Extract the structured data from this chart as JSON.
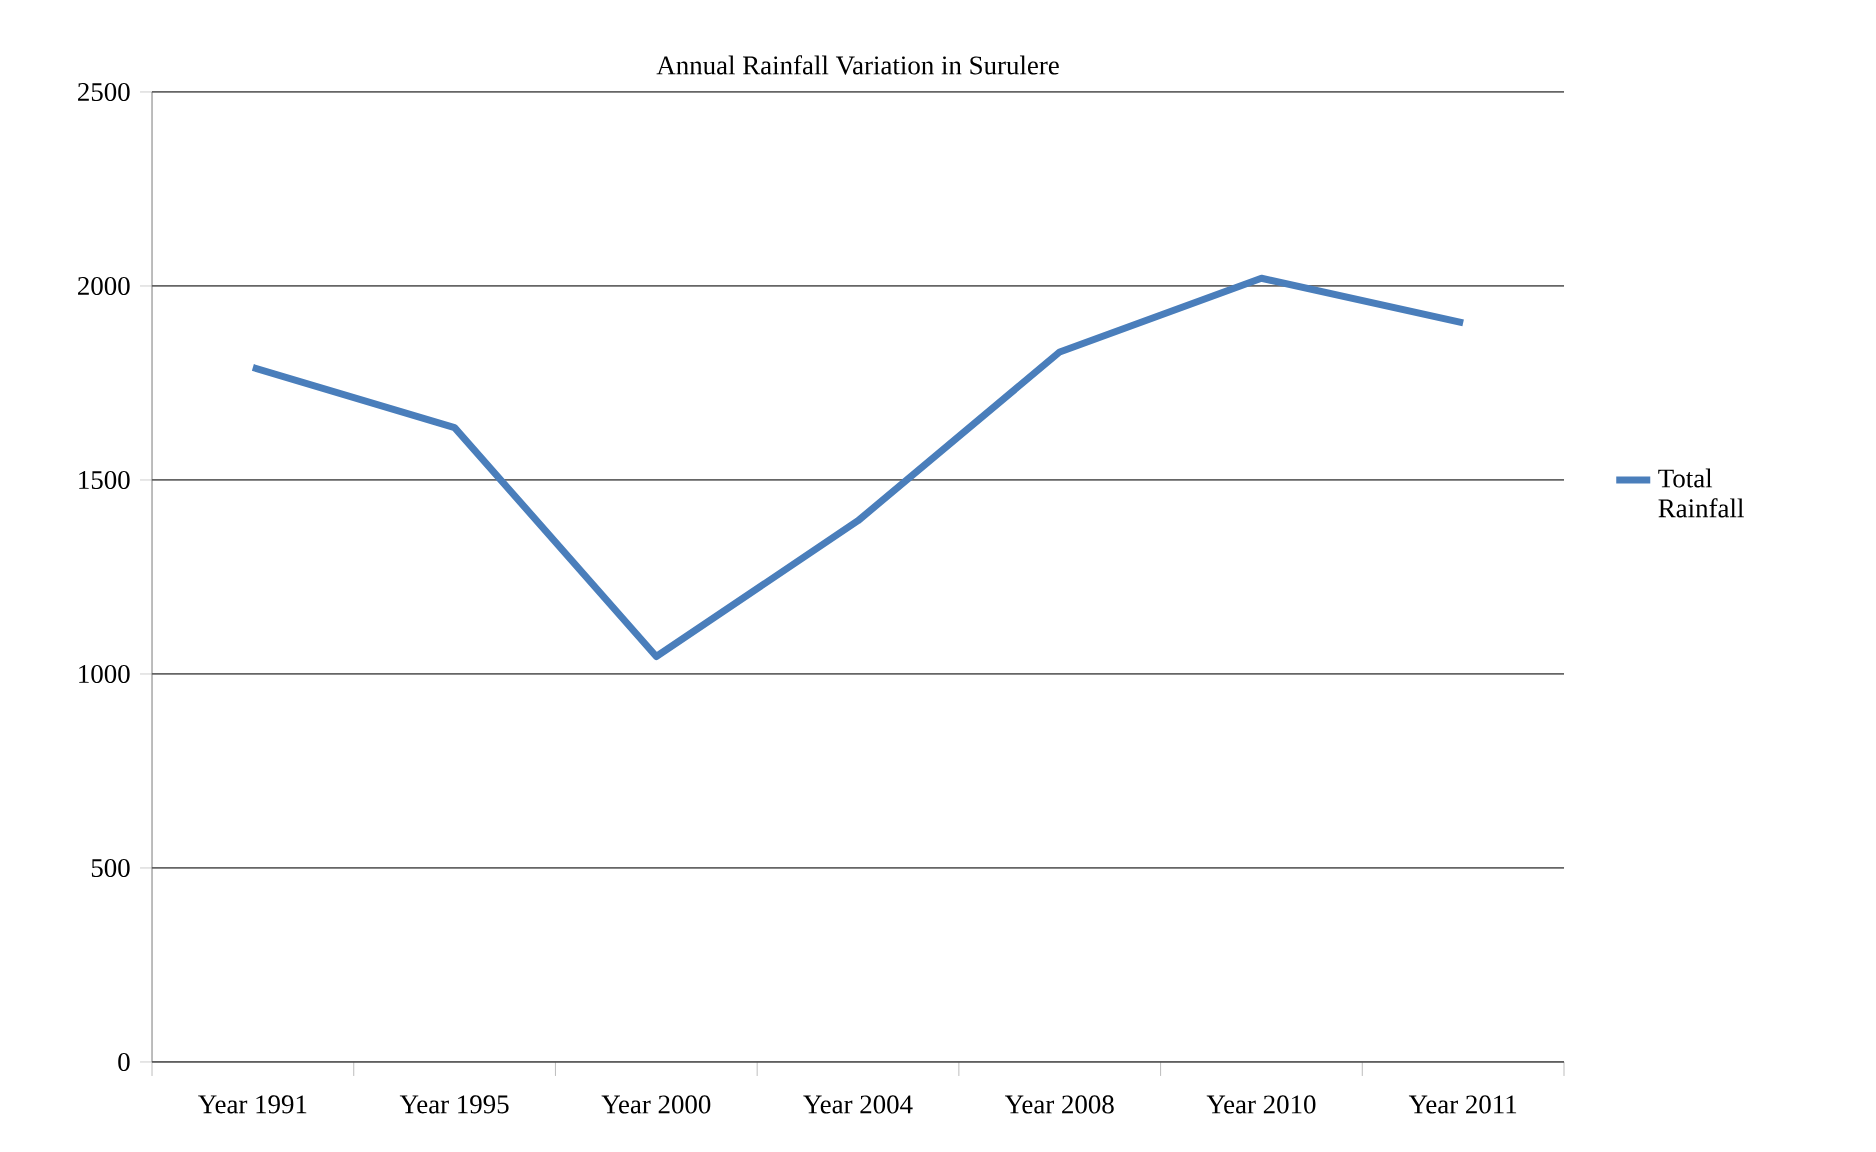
{
  "chart_data": {
    "type": "line",
    "title": "Annual Rainfall Variation in Surulere",
    "categories": [
      "Year 1991",
      "Year 1995",
      "Year 2000",
      "Year 2004",
      "Year 2008",
      "Year 2010",
      "Year 2011"
    ],
    "series": [
      {
        "name": "Total Rainfall",
        "color": "#4a7ebb",
        "values": [
          1790,
          1635,
          1045,
          1395,
          1830,
          2020,
          1905
        ]
      }
    ],
    "ylim": [
      0,
      2500
    ],
    "yticks": [
      0,
      500,
      1000,
      1500,
      2000,
      2500
    ],
    "grid": "y",
    "legend": "right",
    "marker": "none",
    "line_style": "solid"
  }
}
